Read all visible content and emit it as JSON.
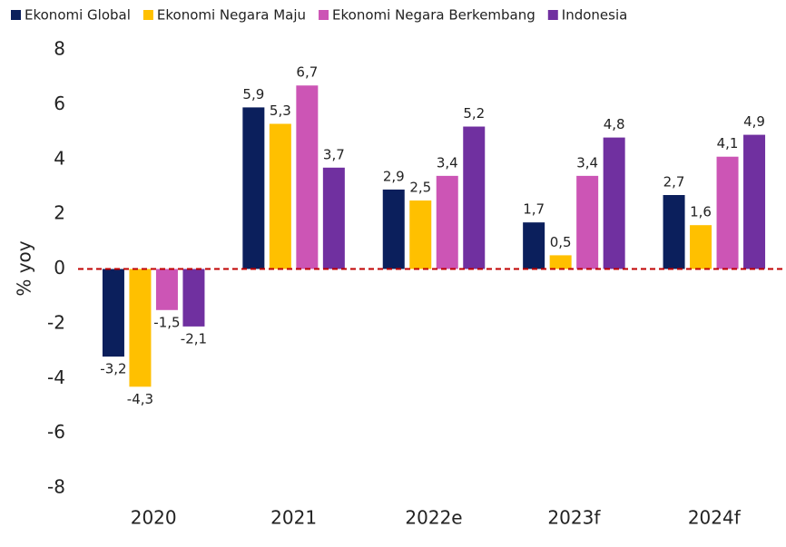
{
  "chart_data": {
    "type": "bar",
    "categories": [
      "2020",
      "2021",
      "2022e",
      "2023f",
      "2024f"
    ],
    "y_label": "% yoy",
    "series": [
      {
        "name": "Ekonomi Global",
        "color": "#0b1f5c",
        "values": [
          -3.2,
          5.9,
          2.9,
          1.7,
          2.7
        ],
        "value_labels": [
          "-3,2",
          "5,9",
          "2,9",
          "1,7",
          "2,7"
        ]
      },
      {
        "name": "Ekonomi Negara Maju",
        "color": "#ffc000",
        "values": [
          -4.3,
          5.3,
          2.5,
          0.5,
          1.6
        ],
        "value_labels": [
          "-4,3",
          "5,3",
          "2,5",
          "0,5",
          "1,6"
        ]
      },
      {
        "name": "Ekonomi Negara Berkembang",
        "color": "#cc55b5",
        "values": [
          -1.5,
          6.7,
          3.4,
          3.4,
          4.1
        ],
        "value_labels": [
          "-1,5",
          "6,7",
          "3,4",
          "3,4",
          "4,1"
        ]
      },
      {
        "name": "Indonesia",
        "color": "#7030a0",
        "values": [
          -2.1,
          3.7,
          5.2,
          4.8,
          4.9
        ],
        "value_labels": [
          "-2,1",
          "3,7",
          "5,2",
          "4,8",
          "4,9"
        ]
      }
    ],
    "ylim": [
      -8,
      8
    ],
    "yticks": [
      8,
      6,
      4,
      2,
      0,
      -2,
      -4,
      -6,
      -8
    ],
    "grid": false,
    "legend": "top"
  }
}
